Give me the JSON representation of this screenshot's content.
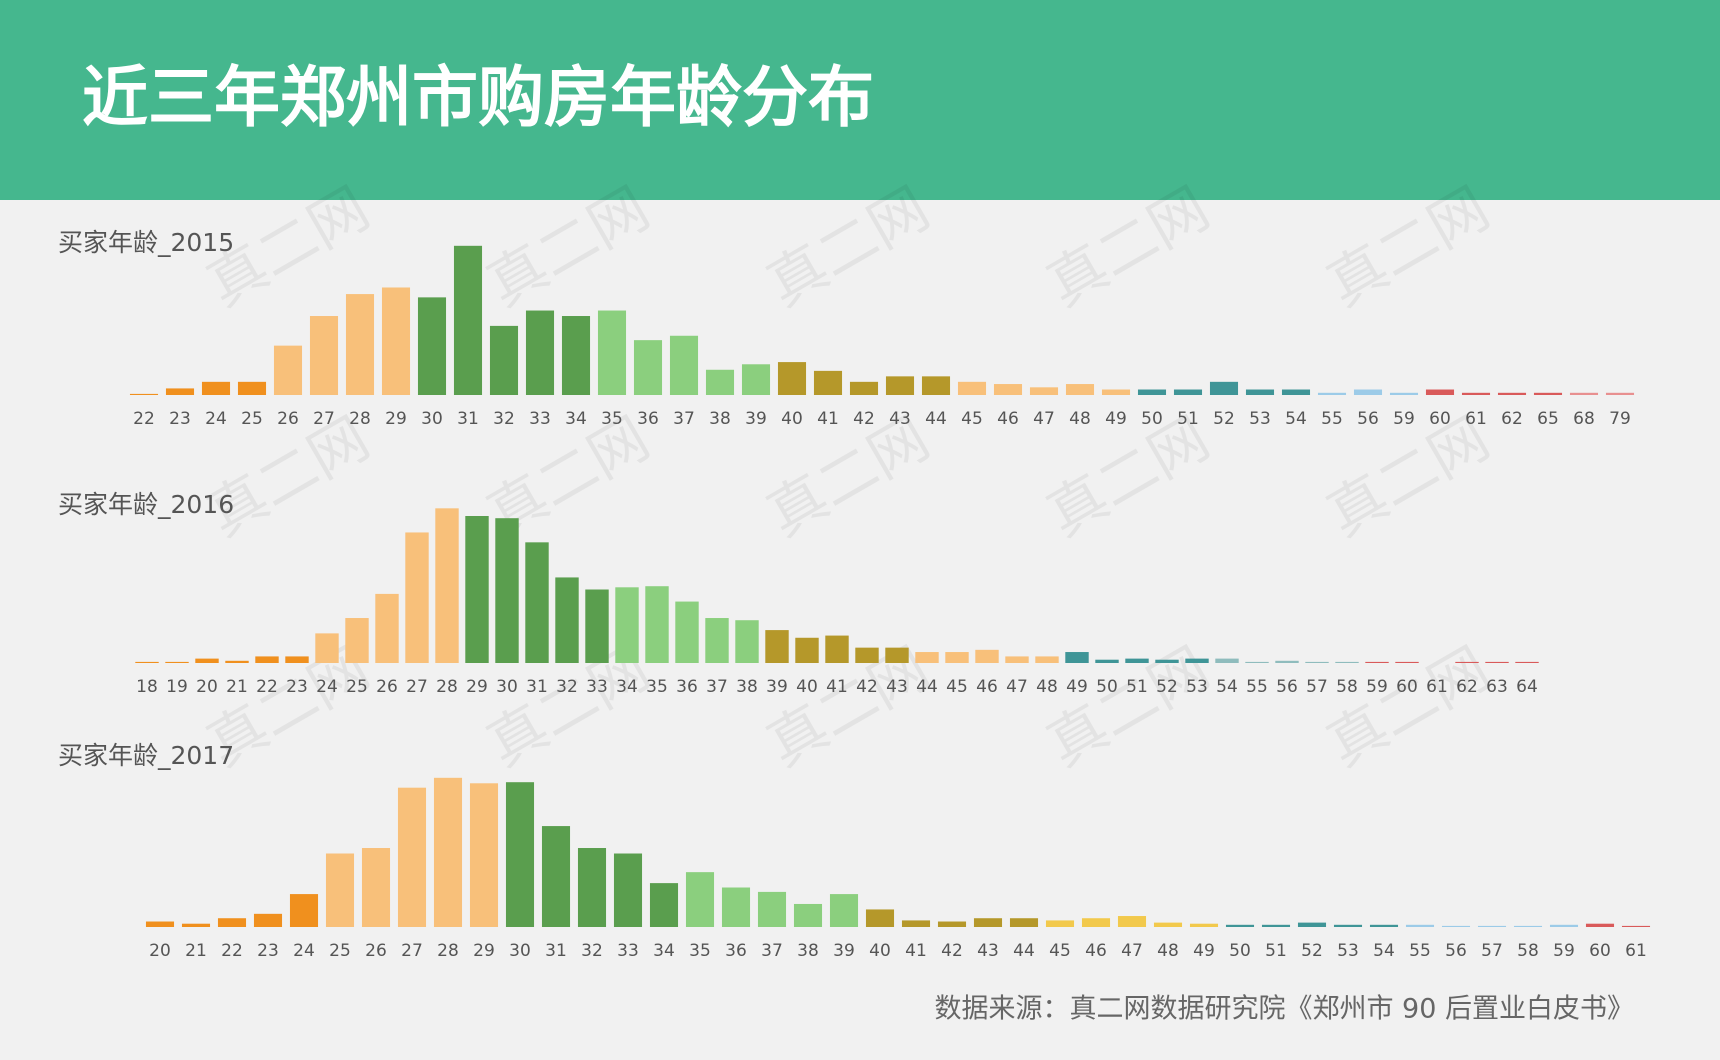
{
  "title": "近三年郑州市购房年龄分布",
  "source": "数据来源：真二网数据研究院《郑州市 90 后置业白皮书》",
  "watermark": "真二网",
  "chart_data": [
    {
      "type": "bar",
      "title": "买家年龄_2015",
      "categories": [
        "22",
        "23",
        "24",
        "25",
        "26",
        "27",
        "28",
        "29",
        "30",
        "31",
        "32",
        "33",
        "34",
        "35",
        "36",
        "37",
        "38",
        "39",
        "40",
        "41",
        "42",
        "43",
        "44",
        "45",
        "46",
        "47",
        "48",
        "49",
        "50",
        "51",
        "52",
        "53",
        "54",
        "55",
        "56",
        "59",
        "60",
        "61",
        "62",
        "65",
        "68",
        "79"
      ],
      "values": [
        1,
        6,
        12,
        12,
        45,
        72,
        92,
        98,
        89,
        136,
        63,
        77,
        72,
        77,
        50,
        54,
        23,
        28,
        30,
        22,
        12,
        17,
        17,
        12,
        10,
        7,
        10,
        5,
        5,
        5,
        12,
        5,
        5,
        2,
        5,
        2,
        5,
        2,
        2,
        2,
        2,
        2
      ],
      "colors": [
        "#f0901e",
        "#f0901e",
        "#f0901e",
        "#f0901e",
        "#f8c07a",
        "#f8c07a",
        "#f8c07a",
        "#f8c07a",
        "#5a9e4e",
        "#5a9e4e",
        "#5a9e4e",
        "#5a9e4e",
        "#5a9e4e",
        "#8bcf7e",
        "#8bcf7e",
        "#8bcf7e",
        "#8bcf7e",
        "#8bcf7e",
        "#b5982a",
        "#b5982a",
        "#b5982a",
        "#b5982a",
        "#b5982a",
        "#f8c07a",
        "#f8c07a",
        "#f8c07a",
        "#f8c07a",
        "#f8c07a",
        "#3f9597",
        "#3f9597",
        "#3f9597",
        "#3f9597",
        "#3f9597",
        "#9ccbe8",
        "#9ccbe8",
        "#9ccbe8",
        "#d95a5a",
        "#d95a5a",
        "#d95a5a",
        "#d95a5a",
        "#e89090",
        "#e89090"
      ]
    },
    {
      "type": "bar",
      "title": "买家年龄_2016",
      "categories": [
        "18",
        "19",
        "20",
        "21",
        "22",
        "23",
        "24",
        "25",
        "26",
        "27",
        "28",
        "29",
        "30",
        "31",
        "32",
        "33",
        "34",
        "35",
        "36",
        "37",
        "38",
        "39",
        "40",
        "41",
        "42",
        "43",
        "44",
        "45",
        "46",
        "47",
        "48",
        "49",
        "50",
        "51",
        "52",
        "53",
        "54",
        "55",
        "56",
        "57",
        "58",
        "59",
        "60",
        "61",
        "62",
        "63",
        "64"
      ],
      "values": [
        1,
        1,
        4,
        2,
        6,
        6,
        27,
        41,
        63,
        119,
        141,
        134,
        132,
        110,
        78,
        67,
        69,
        70,
        56,
        41,
        39,
        30,
        23,
        25,
        14,
        14,
        10,
        10,
        12,
        6,
        6,
        10,
        3,
        4,
        3,
        4,
        4,
        1,
        2,
        1,
        1,
        1,
        1,
        0,
        1,
        1,
        1
      ],
      "colors": [
        "#f0901e",
        "#f0901e",
        "#f0901e",
        "#f0901e",
        "#f0901e",
        "#f0901e",
        "#f8c07a",
        "#f8c07a",
        "#f8c07a",
        "#f8c07a",
        "#f8c07a",
        "#5a9e4e",
        "#5a9e4e",
        "#5a9e4e",
        "#5a9e4e",
        "#5a9e4e",
        "#8bcf7e",
        "#8bcf7e",
        "#8bcf7e",
        "#8bcf7e",
        "#8bcf7e",
        "#b5982a",
        "#b5982a",
        "#b5982a",
        "#b5982a",
        "#b5982a",
        "#f8c07a",
        "#f8c07a",
        "#f8c07a",
        "#f8c07a",
        "#f8c07a",
        "#3f9597",
        "#3f9597",
        "#3f9597",
        "#3f9597",
        "#3f9597",
        "#8fbcbd",
        "#8fbcbd",
        "#8fbcbd",
        "#8fbcbd",
        "#8fbcbd",
        "#d95a5a",
        "#d95a5a",
        "#d95a5a",
        "#d95a5a",
        "#d95a5a",
        "#d95a5a"
      ]
    },
    {
      "type": "bar",
      "title": "买家年龄_2017",
      "categories": [
        "20",
        "21",
        "22",
        "23",
        "24",
        "25",
        "26",
        "27",
        "28",
        "29",
        "30",
        "31",
        "32",
        "33",
        "34",
        "35",
        "36",
        "37",
        "38",
        "39",
        "40",
        "41",
        "42",
        "43",
        "44",
        "45",
        "46",
        "47",
        "48",
        "49",
        "50",
        "51",
        "52",
        "53",
        "54",
        "55",
        "56",
        "57",
        "58",
        "59",
        "60",
        "61"
      ],
      "values": [
        5,
        3,
        8,
        12,
        30,
        67,
        72,
        127,
        136,
        131,
        132,
        92,
        72,
        67,
        40,
        50,
        36,
        32,
        21,
        30,
        16,
        6,
        5,
        8,
        8,
        6,
        8,
        10,
        4,
        3,
        2,
        2,
        4,
        2,
        2,
        2,
        1,
        1,
        1,
        2,
        3,
        1
      ],
      "colors": [
        "#f0901e",
        "#f0901e",
        "#f0901e",
        "#f0901e",
        "#f0901e",
        "#f8c07a",
        "#f8c07a",
        "#f8c07a",
        "#f8c07a",
        "#f8c07a",
        "#5a9e4e",
        "#5a9e4e",
        "#5a9e4e",
        "#5a9e4e",
        "#5a9e4e",
        "#8bcf7e",
        "#8bcf7e",
        "#8bcf7e",
        "#8bcf7e",
        "#8bcf7e",
        "#b5982a",
        "#b5982a",
        "#b5982a",
        "#b5982a",
        "#b5982a",
        "#f2c94c",
        "#f2c94c",
        "#f2c94c",
        "#f2c94c",
        "#f2c94c",
        "#3f9597",
        "#3f9597",
        "#3f9597",
        "#3f9597",
        "#3f9597",
        "#9ccbe8",
        "#9ccbe8",
        "#9ccbe8",
        "#9ccbe8",
        "#9ccbe8",
        "#d95a5a",
        "#d95a5a"
      ]
    }
  ]
}
